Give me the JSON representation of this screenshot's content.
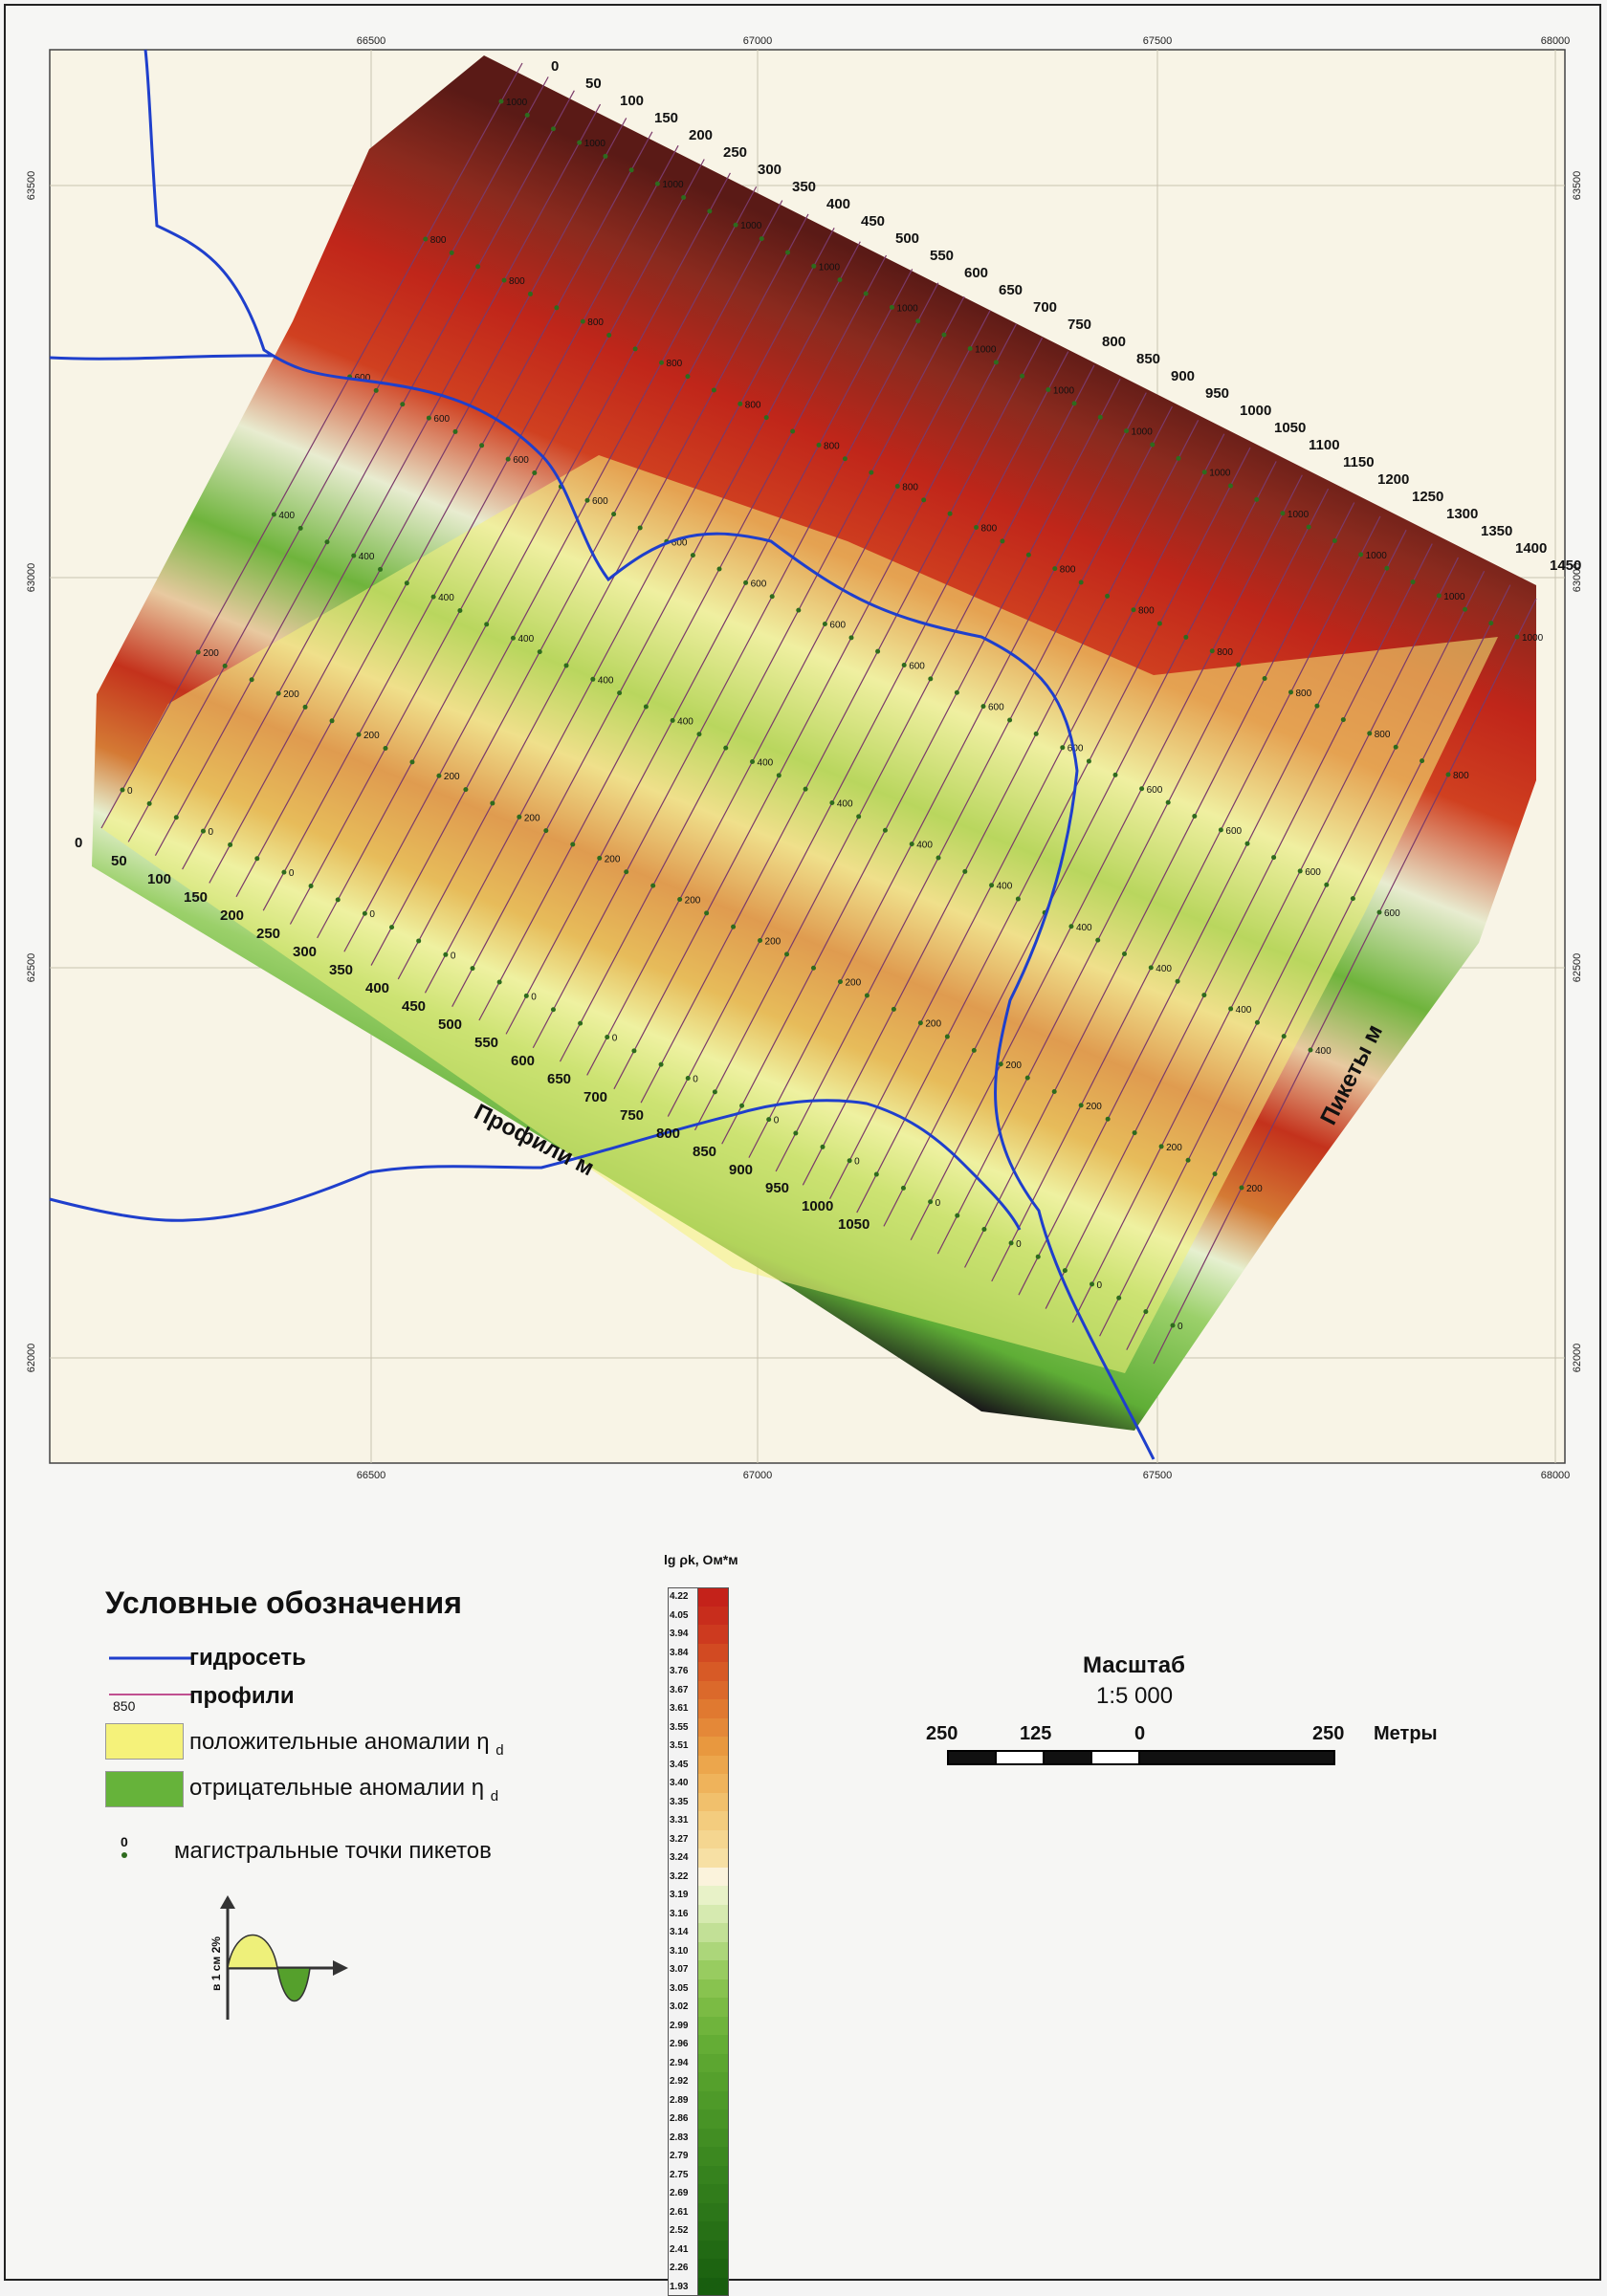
{
  "map": {
    "x_ticks": [
      "66500",
      "67000",
      "67500",
      "68000"
    ],
    "y_ticks": [
      "63500",
      "63000",
      "62500",
      "62000"
    ],
    "profiles_axis_label": "Профили м",
    "pickets_axis_label": "Пикеты м",
    "profile_numbers": [
      "0",
      "50",
      "100",
      "150",
      "200",
      "250",
      "300",
      "350",
      "400",
      "450",
      "500",
      "550",
      "600",
      "650",
      "700",
      "750",
      "800",
      "850",
      "900",
      "950",
      "1000",
      "1050"
    ],
    "picket_numbers": [
      "0",
      "50",
      "100",
      "150",
      "200",
      "250",
      "300",
      "350",
      "400",
      "450",
      "500",
      "550",
      "600",
      "650",
      "700",
      "750",
      "800",
      "850",
      "900",
      "950",
      "1000",
      "1050",
      "1100",
      "1150",
      "1200",
      "1250",
      "1300",
      "1350",
      "1400",
      "1450"
    ],
    "inner_picket_labels": [
      "0",
      "200",
      "400",
      "600",
      "800",
      "1000"
    ]
  },
  "legend": {
    "title": "Условные обозначения",
    "hydro_label": "гидросеть",
    "profiles_label": "профили",
    "profiles_sample_number": "850",
    "positive_label": "положительные аномалии η",
    "positive_sub": "d",
    "negative_label": "отрицательные аномалии η",
    "negative_sub": "d",
    "points_label": "магистральные точки пикетов",
    "points_sample_number": "0",
    "wave_axis_label": "в 1 см 2%"
  },
  "colorbar": {
    "title": "lg ρk, Ом*м",
    "values": [
      "4.22",
      "4.05",
      "3.94",
      "3.84",
      "3.76",
      "3.67",
      "3.61",
      "3.55",
      "3.51",
      "3.45",
      "3.40",
      "3.35",
      "3.31",
      "3.27",
      "3.24",
      "3.22",
      "3.19",
      "3.16",
      "3.14",
      "3.10",
      "3.07",
      "3.05",
      "3.02",
      "2.99",
      "2.96",
      "2.94",
      "2.92",
      "2.89",
      "2.86",
      "2.83",
      "2.79",
      "2.75",
      "2.69",
      "2.61",
      "2.52",
      "2.41",
      "2.26",
      "1.93"
    ],
    "colors": [
      "#c4221a",
      "#c82d1c",
      "#cd3a1f",
      "#d24a22",
      "#d75a26",
      "#db692b",
      "#e07930",
      "#e48838",
      "#e8983f",
      "#eca64c",
      "#efb35b",
      "#f1c06c",
      "#f3cc7e",
      "#f5d690",
      "#f7e0a4",
      "#fbf3dc",
      "#e8f2c8",
      "#d6eab0",
      "#c2e096",
      "#acd67a",
      "#98cc60",
      "#88c34f",
      "#7bbb44",
      "#6fb43c",
      "#64ad35",
      "#5ca630",
      "#55a02c",
      "#4e9a29",
      "#489426",
      "#428e23",
      "#3c8820",
      "#36821e",
      "#317c1b",
      "#2c7619",
      "#277016",
      "#226a14",
      "#1d6411",
      "#185e0f"
    ]
  },
  "scale": {
    "title": "Масштаб",
    "ratio": "1:5 000",
    "labels": [
      "250",
      "125",
      "0",
      "250"
    ],
    "unit": "Метры"
  }
}
